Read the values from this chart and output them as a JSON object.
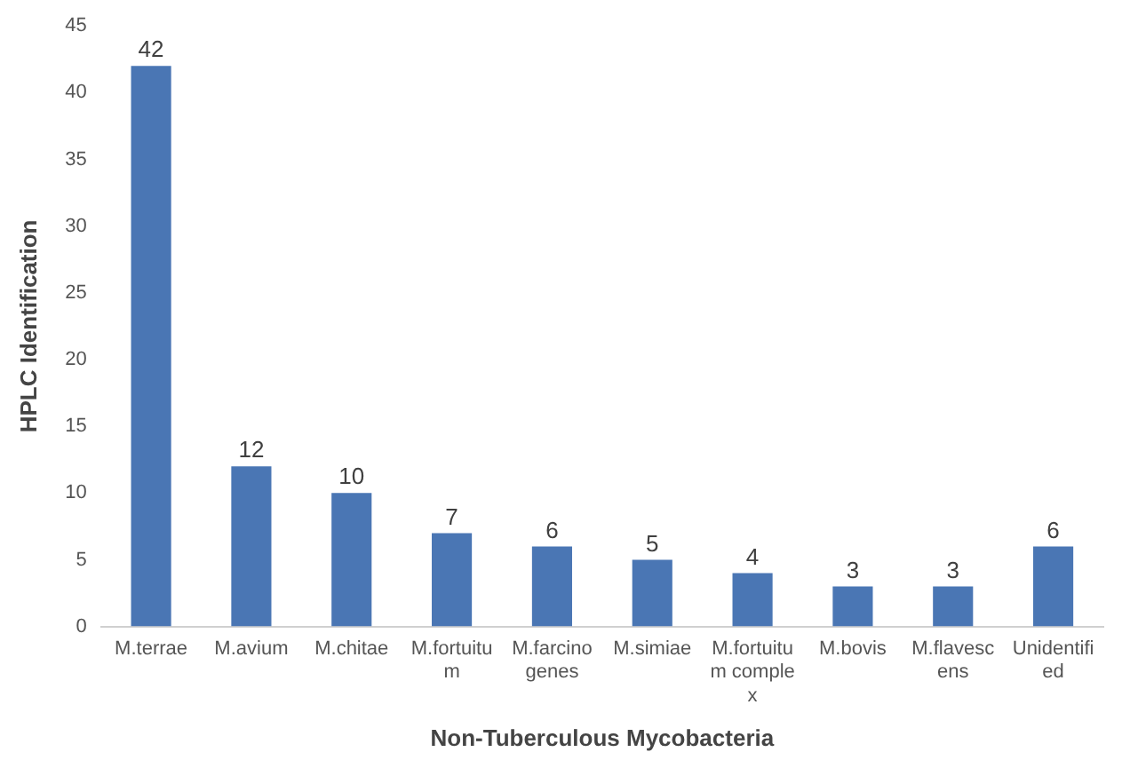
{
  "chart_data": {
    "type": "bar",
    "xlabel": "Non-Tuberculous Mycobacteria",
    "ylabel": "HPLC Identification",
    "categories": [
      "M.terrae",
      "M.avium",
      "M.chitae",
      "M.fortuitum",
      "M.farcinogenes",
      "M.simiae",
      "M.fortuitum complex",
      "M.bovis",
      "M.flavescens",
      "Unidentified"
    ],
    "values": [
      42,
      12,
      10,
      7,
      6,
      5,
      4,
      3,
      3,
      6
    ],
    "color": "#4a76b4",
    "ylim": [
      0,
      45
    ],
    "yticks": [
      0,
      5,
      10,
      15,
      20,
      25,
      30,
      35,
      40,
      45
    ],
    "grid": false,
    "legend": false,
    "data_labels": true
  }
}
